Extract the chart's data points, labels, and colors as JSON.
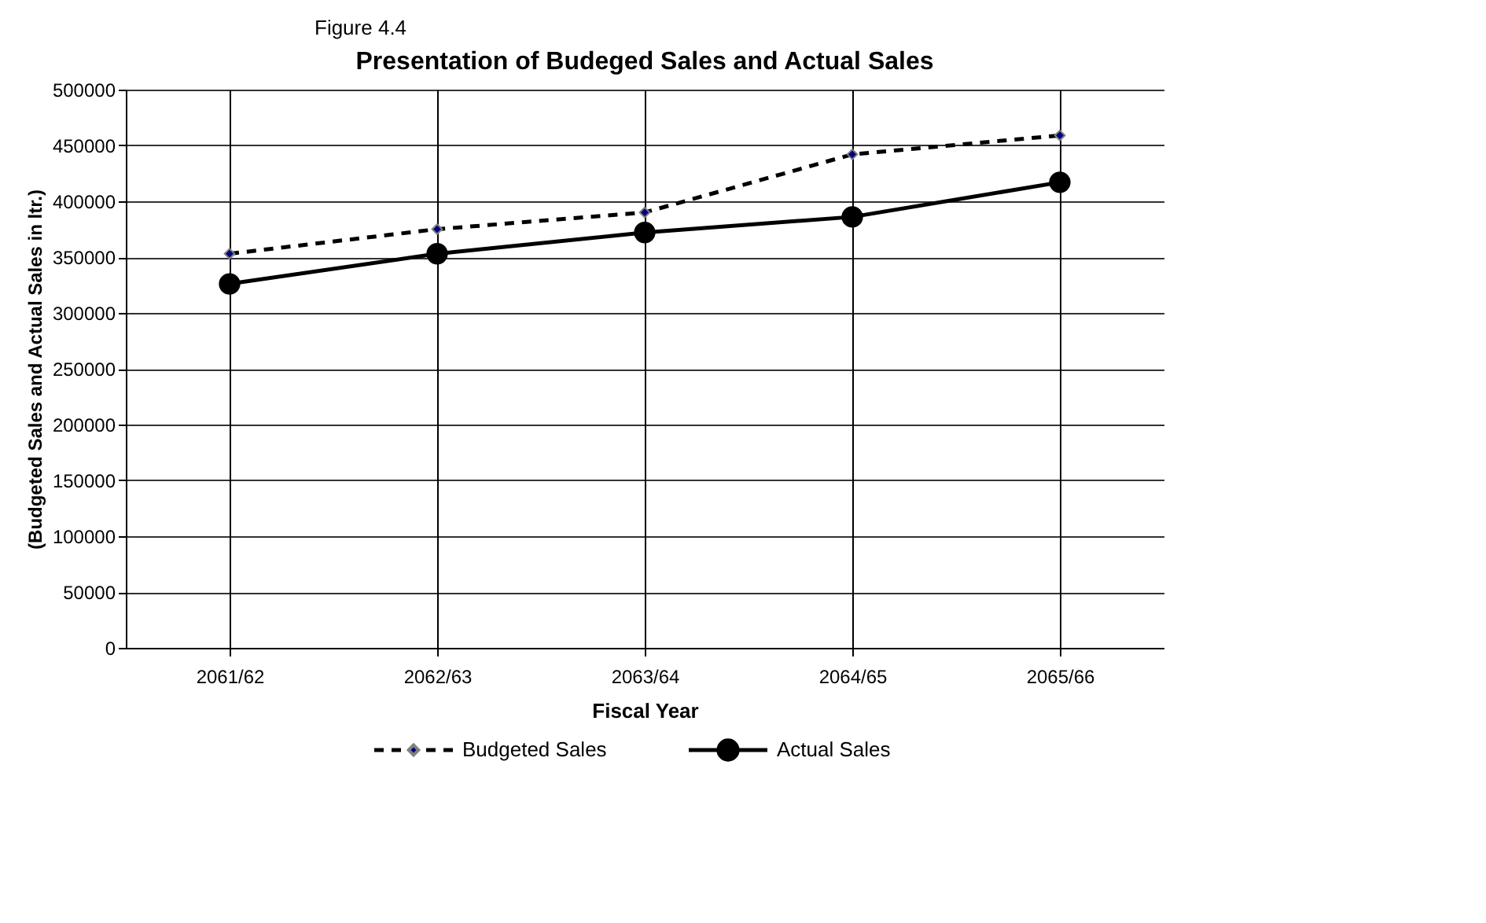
{
  "chart_data": {
    "type": "line",
    "title": "Presentation of Budeged Sales and Actual Sales",
    "annotations": [
      "Figure 4.4"
    ],
    "xlabel": "Fiscal Year",
    "ylabel": "(Budgeted Sales and Actual Sales in ltr.)",
    "categories": [
      "2061/62",
      "2062/63",
      "2063/64",
      "2064/65",
      "2065/66"
    ],
    "series": [
      {
        "name": "Budgeted Sales",
        "color": "#000000",
        "marker": "diamond",
        "line_style": "dashed",
        "values": [
          353000,
          375000,
          390000,
          442000,
          459000
        ]
      },
      {
        "name": "Actual Sales",
        "color": "#000000",
        "marker": "circle",
        "line_style": "solid",
        "values": [
          326000,
          353000,
          372000,
          386000,
          417000
        ]
      }
    ],
    "ylim": [
      0,
      500000
    ],
    "yticks": [
      0,
      50000,
      100000,
      150000,
      200000,
      250000,
      300000,
      350000,
      400000,
      450000,
      500000
    ],
    "grid": true,
    "legend": "bottom"
  }
}
